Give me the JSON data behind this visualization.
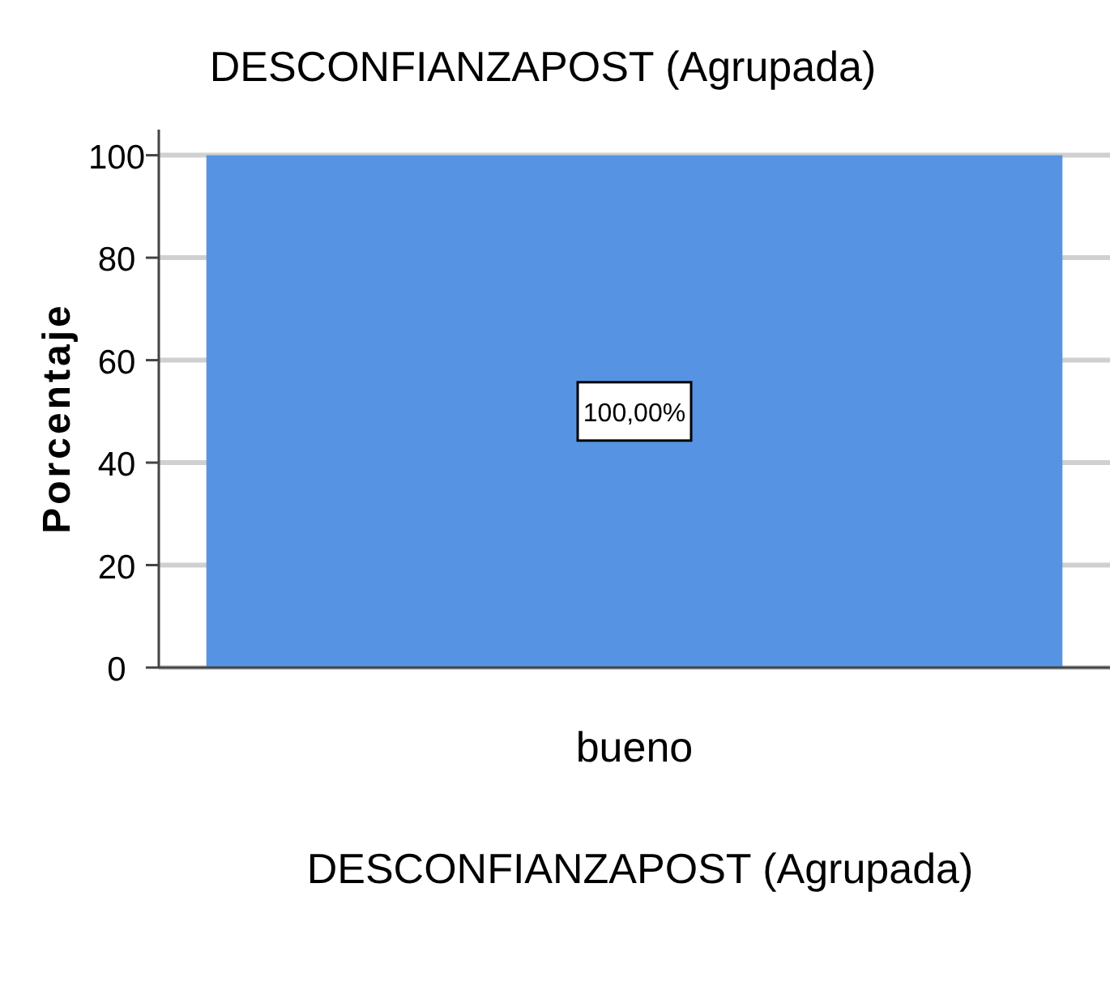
{
  "chart_data": {
    "type": "bar",
    "title": "DESCONFIANZAPOST (Agrupada)",
    "xlabel": "DESCONFIANZAPOST (Agrupada)",
    "ylabel": "Porcentaje",
    "categories": [
      "bueno"
    ],
    "values": [
      100
    ],
    "value_labels": [
      "100,00%"
    ],
    "color": "#5694e3",
    "ylim": [
      0,
      105
    ],
    "yticks": [
      0,
      20,
      40,
      60,
      80,
      100
    ],
    "grid": "y"
  }
}
